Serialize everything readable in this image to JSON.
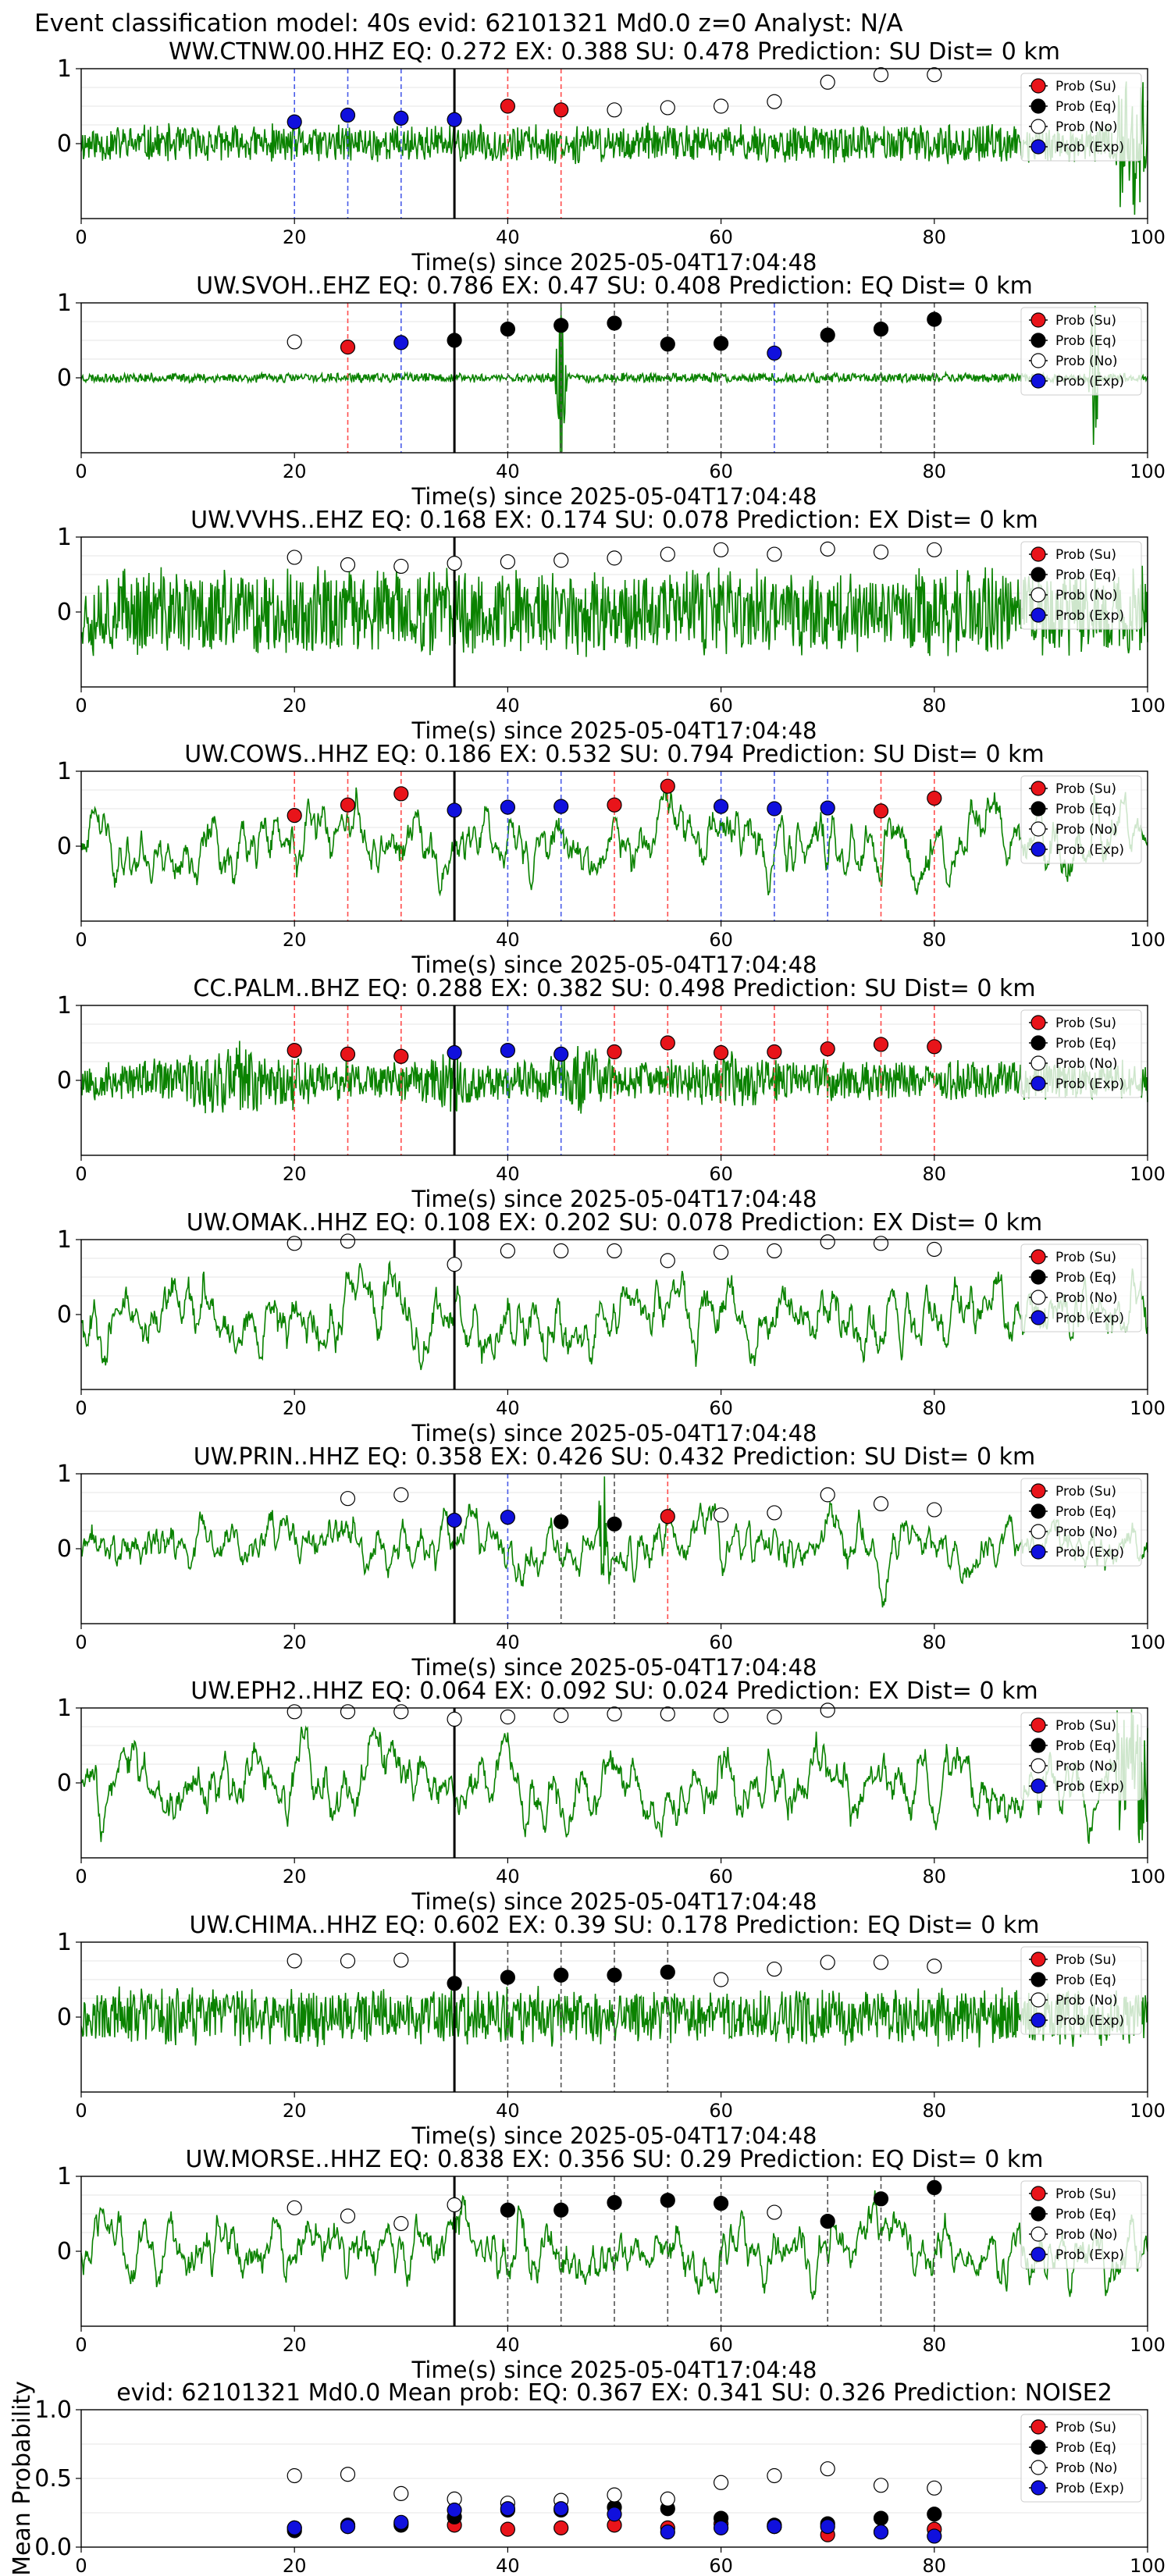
{
  "figure": {
    "title": "Event classification model: 40s evid: 62101321 Md0.0 z=0 Analyst: N/A"
  },
  "colors": {
    "waveform": "#0a8200",
    "su": "#e8141a",
    "eq": "#000000",
    "no": "#ffffff",
    "exp": "#1010dd",
    "su_line": "#ff4d4d",
    "eq_line": "#555555",
    "exp_line": "#4a5ce8"
  },
  "legend": {
    "entries": [
      {
        "key": "su",
        "label": "Prob (Su)"
      },
      {
        "key": "eq",
        "label": "Prob (Eq)"
      },
      {
        "key": "no",
        "label": "Prob (No)"
      },
      {
        "key": "exp",
        "label": "Prob (Exp)"
      }
    ],
    "placement": "top-right"
  },
  "chart_data": [
    {
      "type": "line",
      "title": "WW.CTNW.00.HHZ   EQ: 0.272  EX: 0.388  SU: 0.478   Prediction: SU    Dist= 0 km",
      "xlabel": "Time(s) since 2025-05-04T17:04:48",
      "xlim": [
        0,
        100
      ],
      "ylim": [
        -1,
        1
      ],
      "xticks": [
        0,
        20,
        40,
        60,
        80,
        100
      ],
      "yticks": [
        0,
        1
      ],
      "noise": {
        "amp": 0.28,
        "seed": 11,
        "end_spike": true
      },
      "vline_x": 35,
      "points": [
        {
          "x": 20,
          "y": 0.29,
          "c": "exp"
        },
        {
          "x": 25,
          "y": 0.38,
          "c": "exp"
        },
        {
          "x": 30,
          "y": 0.34,
          "c": "exp"
        },
        {
          "x": 35,
          "y": 0.32,
          "c": "exp"
        },
        {
          "x": 40,
          "y": 0.5,
          "c": "su"
        },
        {
          "x": 45,
          "y": 0.45,
          "c": "su"
        },
        {
          "x": 50,
          "y": 0.45,
          "c": "no"
        },
        {
          "x": 55,
          "y": 0.48,
          "c": "no"
        },
        {
          "x": 60,
          "y": 0.5,
          "c": "no"
        },
        {
          "x": 65,
          "y": 0.56,
          "c": "no"
        },
        {
          "x": 70,
          "y": 0.82,
          "c": "no"
        },
        {
          "x": 75,
          "y": 0.92,
          "c": "no"
        },
        {
          "x": 80,
          "y": 0.92,
          "c": "no"
        }
      ]
    },
    {
      "type": "line",
      "title": "UW.SVOH..EHZ   EQ: 0.786  EX: 0.47  SU: 0.408   Prediction: EQ    Dist= 0 km",
      "xlabel": "Time(s) since 2025-05-04T17:04:48",
      "xlim": [
        0,
        100
      ],
      "ylim": [
        -1,
        1
      ],
      "xticks": [
        0,
        20,
        40,
        60,
        80,
        100
      ],
      "yticks": [
        0,
        1
      ],
      "noise": {
        "amp": 0.07,
        "seed": 23,
        "spikes": [
          {
            "x": 45,
            "a": 0.9
          },
          {
            "x": 95,
            "a": 0.8
          }
        ]
      },
      "vline_x": 35,
      "points": [
        {
          "x": 20,
          "y": 0.48,
          "c": "no"
        },
        {
          "x": 25,
          "y": 0.41,
          "c": "su"
        },
        {
          "x": 30,
          "y": 0.47,
          "c": "exp"
        },
        {
          "x": 35,
          "y": 0.5,
          "c": "eq"
        },
        {
          "x": 40,
          "y": 0.65,
          "c": "eq"
        },
        {
          "x": 45,
          "y": 0.7,
          "c": "eq"
        },
        {
          "x": 50,
          "y": 0.73,
          "c": "eq"
        },
        {
          "x": 55,
          "y": 0.45,
          "c": "eq"
        },
        {
          "x": 60,
          "y": 0.46,
          "c": "eq"
        },
        {
          "x": 65,
          "y": 0.33,
          "c": "exp"
        },
        {
          "x": 70,
          "y": 0.57,
          "c": "eq"
        },
        {
          "x": 75,
          "y": 0.65,
          "c": "eq"
        },
        {
          "x": 80,
          "y": 0.78,
          "c": "eq"
        }
      ]
    },
    {
      "type": "line",
      "title": "UW.VVHS..EHZ   EQ: 0.168  EX: 0.174  SU: 0.078   Prediction: EX    Dist= 0 km",
      "xlabel": "Time(s) since 2025-05-04T17:04:48",
      "xlim": [
        0,
        100
      ],
      "ylim": [
        -1,
        1
      ],
      "xticks": [
        0,
        20,
        40,
        60,
        80,
        100
      ],
      "yticks": [
        0,
        1
      ],
      "noise": {
        "amp": 0.65,
        "seed": 37
      },
      "vline_x": 35,
      "points": [
        {
          "x": 20,
          "y": 0.73,
          "c": "no"
        },
        {
          "x": 25,
          "y": 0.63,
          "c": "no"
        },
        {
          "x": 30,
          "y": 0.61,
          "c": "no"
        },
        {
          "x": 35,
          "y": 0.65,
          "c": "no"
        },
        {
          "x": 40,
          "y": 0.67,
          "c": "no"
        },
        {
          "x": 45,
          "y": 0.69,
          "c": "no"
        },
        {
          "x": 50,
          "y": 0.72,
          "c": "no"
        },
        {
          "x": 55,
          "y": 0.77,
          "c": "no"
        },
        {
          "x": 60,
          "y": 0.83,
          "c": "no"
        },
        {
          "x": 65,
          "y": 0.77,
          "c": "no"
        },
        {
          "x": 70,
          "y": 0.84,
          "c": "no"
        },
        {
          "x": 75,
          "y": 0.8,
          "c": "no"
        },
        {
          "x": 80,
          "y": 0.83,
          "c": "no"
        }
      ]
    },
    {
      "type": "line",
      "title": "UW.COWS..HHZ   EQ: 0.186  EX: 0.532  SU: 0.794   Prediction: SU    Dist= 0 km",
      "xlabel": "Time(s) since 2025-05-04T17:04:48",
      "xlim": [
        0,
        100
      ],
      "ylim": [
        -1,
        1
      ],
      "xticks": [
        0,
        20,
        40,
        60,
        80,
        100
      ],
      "yticks": [
        0,
        1
      ],
      "noise": {
        "amp": 0.55,
        "seed": 41,
        "smooth": true
      },
      "vline_x": 35,
      "points": [
        {
          "x": 20,
          "y": 0.41,
          "c": "su"
        },
        {
          "x": 25,
          "y": 0.55,
          "c": "su"
        },
        {
          "x": 30,
          "y": 0.7,
          "c": "su"
        },
        {
          "x": 35,
          "y": 0.48,
          "c": "exp"
        },
        {
          "x": 40,
          "y": 0.52,
          "c": "exp"
        },
        {
          "x": 45,
          "y": 0.53,
          "c": "exp"
        },
        {
          "x": 50,
          "y": 0.55,
          "c": "su"
        },
        {
          "x": 55,
          "y": 0.8,
          "c": "su"
        },
        {
          "x": 60,
          "y": 0.53,
          "c": "exp"
        },
        {
          "x": 65,
          "y": 0.5,
          "c": "exp"
        },
        {
          "x": 70,
          "y": 0.51,
          "c": "exp"
        },
        {
          "x": 75,
          "y": 0.47,
          "c": "su"
        },
        {
          "x": 80,
          "y": 0.64,
          "c": "su"
        }
      ]
    },
    {
      "type": "line",
      "title": "CC.PALM..BHZ   EQ: 0.288  EX: 0.382  SU: 0.498   Prediction: SU    Dist= 0 km",
      "xlabel": "Time(s) since 2025-05-04T17:04:48",
      "xlim": [
        0,
        100
      ],
      "ylim": [
        -1,
        1
      ],
      "xticks": [
        0,
        20,
        40,
        60,
        80,
        100
      ],
      "yticks": [
        0,
        1
      ],
      "noise": {
        "amp": 0.3,
        "seed": 53,
        "bursts": [
          {
            "x": 15,
            "w": 8,
            "a": 2.0
          },
          {
            "x": 35,
            "w": 3,
            "a": 2.2
          },
          {
            "x": 47,
            "w": 5,
            "a": 1.8
          },
          {
            "x": 62,
            "w": 5,
            "a": 1.6
          }
        ]
      },
      "vline_x": 35,
      "points": [
        {
          "x": 20,
          "y": 0.4,
          "c": "su"
        },
        {
          "x": 25,
          "y": 0.35,
          "c": "su"
        },
        {
          "x": 30,
          "y": 0.32,
          "c": "su"
        },
        {
          "x": 35,
          "y": 0.37,
          "c": "exp"
        },
        {
          "x": 40,
          "y": 0.4,
          "c": "exp"
        },
        {
          "x": 45,
          "y": 0.35,
          "c": "exp"
        },
        {
          "x": 50,
          "y": 0.38,
          "c": "su"
        },
        {
          "x": 55,
          "y": 0.5,
          "c": "su"
        },
        {
          "x": 60,
          "y": 0.37,
          "c": "su"
        },
        {
          "x": 65,
          "y": 0.38,
          "c": "su"
        },
        {
          "x": 70,
          "y": 0.42,
          "c": "su"
        },
        {
          "x": 75,
          "y": 0.48,
          "c": "su"
        },
        {
          "x": 80,
          "y": 0.45,
          "c": "su"
        }
      ]
    },
    {
      "type": "line",
      "title": "UW.OMAK..HHZ   EQ: 0.108  EX: 0.202  SU: 0.078   Prediction: EX    Dist= 0 km",
      "xlabel": "Time(s) since 2025-05-04T17:04:48",
      "xlim": [
        0,
        100
      ],
      "ylim": [
        -1,
        1
      ],
      "xticks": [
        0,
        20,
        40,
        60,
        80,
        100
      ],
      "yticks": [
        0,
        1
      ],
      "noise": {
        "amp": 0.55,
        "seed": 67,
        "smooth": true
      },
      "vline_x": 35,
      "points": [
        {
          "x": 20,
          "y": 0.95,
          "c": "no"
        },
        {
          "x": 25,
          "y": 0.98,
          "c": "no"
        },
        {
          "x": 35,
          "y": 0.67,
          "c": "no"
        },
        {
          "x": 40,
          "y": 0.85,
          "c": "no"
        },
        {
          "x": 45,
          "y": 0.85,
          "c": "no"
        },
        {
          "x": 50,
          "y": 0.85,
          "c": "no"
        },
        {
          "x": 55,
          "y": 0.72,
          "c": "no"
        },
        {
          "x": 60,
          "y": 0.83,
          "c": "no"
        },
        {
          "x": 65,
          "y": 0.85,
          "c": "no"
        },
        {
          "x": 70,
          "y": 0.97,
          "c": "no"
        },
        {
          "x": 75,
          "y": 0.95,
          "c": "no"
        },
        {
          "x": 80,
          "y": 0.87,
          "c": "no"
        }
      ]
    },
    {
      "type": "line",
      "title": "UW.PRIN..HHZ   EQ: 0.358  EX: 0.426  SU: 0.432   Prediction: SU    Dist= 0 km",
      "xlabel": "Time(s) since 2025-05-04T17:04:48",
      "xlim": [
        0,
        100
      ],
      "ylim": [
        -1,
        1
      ],
      "xticks": [
        0,
        20,
        40,
        60,
        80,
        100
      ],
      "yticks": [
        0,
        1
      ],
      "noise": {
        "amp": 0.45,
        "seed": 71,
        "smooth": true,
        "spikes": [
          {
            "x": 49,
            "a": 0.9
          }
        ]
      },
      "vline_x": 35,
      "points": [
        {
          "x": 25,
          "y": 0.67,
          "c": "no"
        },
        {
          "x": 30,
          "y": 0.72,
          "c": "no"
        },
        {
          "x": 35,
          "y": 0.38,
          "c": "exp"
        },
        {
          "x": 40,
          "y": 0.42,
          "c": "exp"
        },
        {
          "x": 45,
          "y": 0.36,
          "c": "eq"
        },
        {
          "x": 50,
          "y": 0.33,
          "c": "eq"
        },
        {
          "x": 55,
          "y": 0.43,
          "c": "su"
        },
        {
          "x": 60,
          "y": 0.45,
          "c": "no"
        },
        {
          "x": 65,
          "y": 0.48,
          "c": "no"
        },
        {
          "x": 70,
          "y": 0.72,
          "c": "no"
        },
        {
          "x": 75,
          "y": 0.6,
          "c": "no"
        },
        {
          "x": 80,
          "y": 0.52,
          "c": "no"
        }
      ]
    },
    {
      "type": "line",
      "title": "UW.EPH2..HHZ   EQ: 0.064  EX: 0.092  SU: 0.024   Prediction: EX    Dist= 0 km",
      "xlabel": "Time(s) since 2025-05-04T17:04:48",
      "xlim": [
        0,
        100
      ],
      "ylim": [
        -1,
        1
      ],
      "xticks": [
        0,
        20,
        40,
        60,
        80,
        100
      ],
      "yticks": [
        0,
        1
      ],
      "noise": {
        "amp": 0.55,
        "seed": 83,
        "smooth": true,
        "end_spike": true
      },
      "vline_x": 35,
      "points": [
        {
          "x": 20,
          "y": 0.95,
          "c": "no"
        },
        {
          "x": 25,
          "y": 0.95,
          "c": "no"
        },
        {
          "x": 30,
          "y": 0.95,
          "c": "no"
        },
        {
          "x": 35,
          "y": 0.85,
          "c": "no"
        },
        {
          "x": 40,
          "y": 0.88,
          "c": "no"
        },
        {
          "x": 45,
          "y": 0.9,
          "c": "no"
        },
        {
          "x": 50,
          "y": 0.92,
          "c": "no"
        },
        {
          "x": 55,
          "y": 0.92,
          "c": "no"
        },
        {
          "x": 60,
          "y": 0.9,
          "c": "no"
        },
        {
          "x": 65,
          "y": 0.88,
          "c": "no"
        },
        {
          "x": 70,
          "y": 0.97,
          "c": "no"
        }
      ]
    },
    {
      "type": "line",
      "title": "UW.CHIMA..HHZ   EQ: 0.602  EX: 0.39  SU: 0.178   Prediction: EQ    Dist= 0 km",
      "xlabel": "Time(s) since 2025-05-04T17:04:48",
      "xlim": [
        0,
        100
      ],
      "ylim": [
        -1,
        1
      ],
      "xticks": [
        0,
        20,
        40,
        60,
        80,
        100
      ],
      "yticks": [
        0,
        1
      ],
      "noise": {
        "amp": 0.42,
        "seed": 97
      },
      "vline_x": 35,
      "points": [
        {
          "x": 20,
          "y": 0.75,
          "c": "no"
        },
        {
          "x": 25,
          "y": 0.75,
          "c": "no"
        },
        {
          "x": 30,
          "y": 0.76,
          "c": "no"
        },
        {
          "x": 35,
          "y": 0.45,
          "c": "eq"
        },
        {
          "x": 40,
          "y": 0.53,
          "c": "eq"
        },
        {
          "x": 45,
          "y": 0.56,
          "c": "eq"
        },
        {
          "x": 50,
          "y": 0.56,
          "c": "eq"
        },
        {
          "x": 55,
          "y": 0.6,
          "c": "eq"
        },
        {
          "x": 60,
          "y": 0.5,
          "c": "no"
        },
        {
          "x": 65,
          "y": 0.64,
          "c": "no"
        },
        {
          "x": 70,
          "y": 0.73,
          "c": "no"
        },
        {
          "x": 75,
          "y": 0.73,
          "c": "no"
        },
        {
          "x": 80,
          "y": 0.68,
          "c": "no"
        }
      ]
    },
    {
      "type": "line",
      "title": "UW.MORSE..HHZ   EQ: 0.838  EX: 0.356  SU: 0.29   Prediction: EQ    Dist= 0 km",
      "xlabel": "Time(s) since 2025-05-04T17:04:48",
      "xlim": [
        0,
        100
      ],
      "ylim": [
        -1,
        1
      ],
      "xticks": [
        0,
        20,
        40,
        60,
        80,
        100
      ],
      "yticks": [
        0,
        1
      ],
      "noise": {
        "amp": 0.55,
        "seed": 103,
        "smooth": true
      },
      "vline_x": 35,
      "points": [
        {
          "x": 20,
          "y": 0.58,
          "c": "no"
        },
        {
          "x": 25,
          "y": 0.47,
          "c": "no"
        },
        {
          "x": 30,
          "y": 0.37,
          "c": "no"
        },
        {
          "x": 35,
          "y": 0.62,
          "c": "no"
        },
        {
          "x": 40,
          "y": 0.55,
          "c": "eq"
        },
        {
          "x": 45,
          "y": 0.55,
          "c": "eq"
        },
        {
          "x": 50,
          "y": 0.65,
          "c": "eq"
        },
        {
          "x": 55,
          "y": 0.68,
          "c": "eq"
        },
        {
          "x": 60,
          "y": 0.64,
          "c": "eq"
        },
        {
          "x": 65,
          "y": 0.52,
          "c": "no"
        },
        {
          "x": 70,
          "y": 0.4,
          "c": "eq"
        },
        {
          "x": 75,
          "y": 0.7,
          "c": "eq"
        },
        {
          "x": 80,
          "y": 0.85,
          "c": "eq"
        }
      ]
    },
    {
      "type": "scatter",
      "title": "evid: 62101321   Md0.0   Mean prob:   EQ: 0.367  EX: 0.341  SU: 0.326   Prediction: NOISE2",
      "ylabel": "Mean Probability",
      "xlim": [
        0,
        100
      ],
      "ylim": [
        0,
        1
      ],
      "xticks": [
        0,
        20,
        40,
        60,
        80,
        100
      ],
      "yticks": [
        0.0,
        0.5,
        1.0
      ],
      "yticklabels": [
        "0.0",
        "0.5",
        "1.0"
      ],
      "series": [
        {
          "name": "Prob (Su)",
          "key": "su",
          "x": [
            20,
            25,
            30,
            35,
            40,
            45,
            50,
            55,
            60,
            65,
            70,
            75,
            80
          ],
          "y": [
            0.14,
            0.15,
            0.17,
            0.16,
            0.13,
            0.14,
            0.16,
            0.14,
            0.17,
            0.15,
            0.09,
            0.11,
            0.13
          ]
        },
        {
          "name": "Prob (Eq)",
          "key": "eq",
          "x": [
            20,
            25,
            30,
            35,
            40,
            45,
            50,
            55,
            60,
            65,
            70,
            75,
            80
          ],
          "y": [
            0.12,
            0.16,
            0.16,
            0.22,
            0.27,
            0.27,
            0.29,
            0.28,
            0.21,
            0.16,
            0.17,
            0.21,
            0.24
          ]
        },
        {
          "name": "Prob (No)",
          "key": "no",
          "x": [
            20,
            25,
            30,
            35,
            40,
            45,
            50,
            55,
            60,
            65,
            70,
            75,
            80
          ],
          "y": [
            0.52,
            0.53,
            0.39,
            0.35,
            0.32,
            0.34,
            0.38,
            0.35,
            0.47,
            0.52,
            0.57,
            0.45,
            0.43
          ]
        },
        {
          "name": "Prob (Exp)",
          "key": "exp",
          "x": [
            20,
            25,
            30,
            35,
            40,
            45,
            50,
            55,
            60,
            65,
            70,
            75,
            80
          ],
          "y": [
            0.14,
            0.15,
            0.18,
            0.27,
            0.28,
            0.28,
            0.24,
            0.11,
            0.14,
            0.15,
            0.15,
            0.11,
            0.08
          ]
        }
      ]
    }
  ]
}
